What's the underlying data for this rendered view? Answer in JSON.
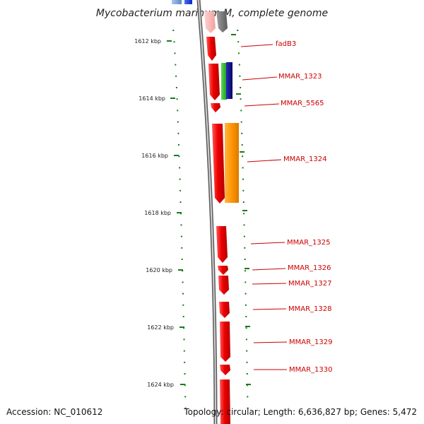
{
  "title": "Mycobacterium marinum M, complete genome",
  "accession_text": "Accession: NC_010612",
  "topology_text": "Topology: circular; Length: 6,636,827 bp; Genes: 5,472",
  "kbp_labels": [
    "1612 kbp",
    "1614 kbp",
    "1616 kbp",
    "1618 kbp",
    "1620 kbp",
    "1622 kbp",
    "1624 kbp"
  ],
  "gene_labels": [
    "fadB3",
    "MMAR_1323",
    "MMAR_5565",
    "MMAR_1324",
    "MMAR_1325",
    "MMAR_1326",
    "MMAR_1327",
    "MMAR_1328",
    "MMAR_1329",
    "MMAR_1330"
  ],
  "colors": {
    "backbone": "#8a8a8a",
    "cds_red": "#ee0000",
    "green": "#22bb22",
    "navy": "#0a0a90",
    "orange": "#ff9500",
    "gray": "#777777",
    "blue": "#1a3ee8",
    "light_blue": "#7aa7d8",
    "tick_green": "#1a7a1a",
    "label_red": "#cc0000"
  }
}
